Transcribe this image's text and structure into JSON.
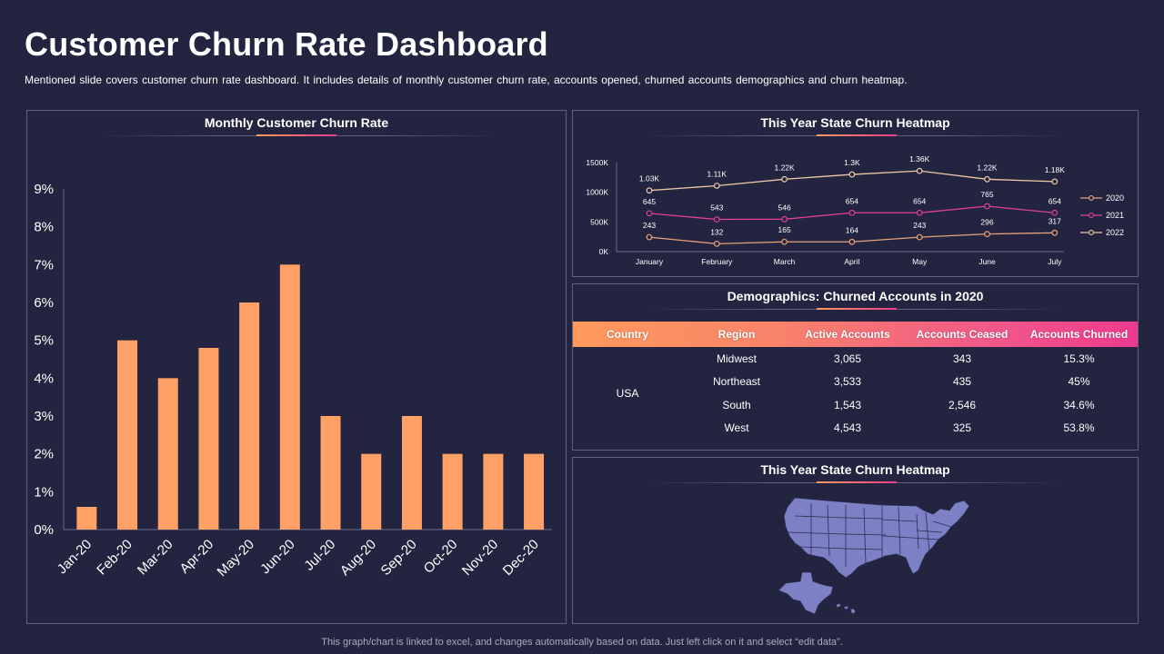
{
  "header": {
    "title": "Customer Churn Rate Dashboard",
    "subtitle": "Mentioned slide covers customer churn rate dashboard. It includes details of monthly customer churn rate, accounts opened, churned accounts demographics and churn heatmap."
  },
  "panels": {
    "monthly_title": "Monthly Customer Churn Rate",
    "trend_title": "This Year State Churn Heatmap",
    "demographics_title": "Demographics: Churned Accounts in 2020",
    "map_title": "This Year State Churn Heatmap"
  },
  "colors": {
    "background": "#222440",
    "bar": "#ffa066",
    "accent_orange": "#ff9a5b",
    "accent_pink": "#ee3a8e",
    "series_2020": "#e9a27a",
    "series_2021": "#e0409a",
    "series_2022": "#f0c7a8",
    "map_fill": "#7d80c4"
  },
  "chart_data": [
    {
      "type": "bar",
      "title": "Monthly Customer Churn Rate",
      "categories": [
        "Jan-20",
        "Feb-20",
        "Mar-20",
        "Apr-20",
        "May-20",
        "Jun-20",
        "Jul-20",
        "Aug-20",
        "Sep-20",
        "Oct-20",
        "Nov-20",
        "Dec-20"
      ],
      "values": [
        0.6,
        5,
        4,
        4.8,
        6,
        7,
        3,
        2,
        3,
        2,
        2,
        2
      ],
      "y_ticks": [
        "0%",
        "1%",
        "2%",
        "3%",
        "4%",
        "5%",
        "6%",
        "7%",
        "8%",
        "9%"
      ],
      "ylim": [
        0,
        9
      ],
      "grid": false
    },
    {
      "type": "line",
      "title": "This Year State Churn Heatmap",
      "categories": [
        "January",
        "February",
        "March",
        "April",
        "May",
        "June",
        "July"
      ],
      "y_ticks": [
        "0K",
        "500K",
        "1000K",
        "1500K"
      ],
      "ylim": [
        0,
        1500
      ],
      "legend_position": "right",
      "series": [
        {
          "name": "2020",
          "values": [
            243,
            132,
            165,
            164,
            243,
            296,
            317
          ],
          "labels": [
            "243",
            "132",
            "165",
            "164",
            "243",
            "296",
            "317"
          ]
        },
        {
          "name": "2021",
          "values": [
            645,
            543,
            546,
            654,
            654,
            765,
            654
          ],
          "labels": [
            "645",
            "543",
            "546",
            "654",
            "654",
            "765",
            "654"
          ]
        },
        {
          "name": "2022",
          "values": [
            1030,
            1110,
            1220,
            1300,
            1360,
            1220,
            1180
          ],
          "labels": [
            "1.03K",
            "1.11K",
            "1.22K",
            "1.3K",
            "1.36K",
            "1.22K",
            "1.18K"
          ]
        }
      ]
    }
  ],
  "demographics": {
    "columns": [
      "Country",
      "Region",
      "Active Accounts",
      "Accounts Ceased",
      "Accounts Churned"
    ],
    "country": "USA",
    "rows": [
      {
        "region": "Midwest",
        "active": "3,065",
        "ceased": "343",
        "churned": "15.3%"
      },
      {
        "region": "Northeast",
        "active": "3,533",
        "ceased": "435",
        "churned": "45%"
      },
      {
        "region": "South",
        "active": "1,543",
        "ceased": "2,546",
        "churned": "34.6%"
      },
      {
        "region": "West",
        "active": "4,543",
        "ceased": "325",
        "churned": "53.8%"
      }
    ]
  },
  "footer": {
    "note": "This graph/chart is linked to excel,  and changes automatically based on data. Just left click on it and select “edit data”."
  }
}
